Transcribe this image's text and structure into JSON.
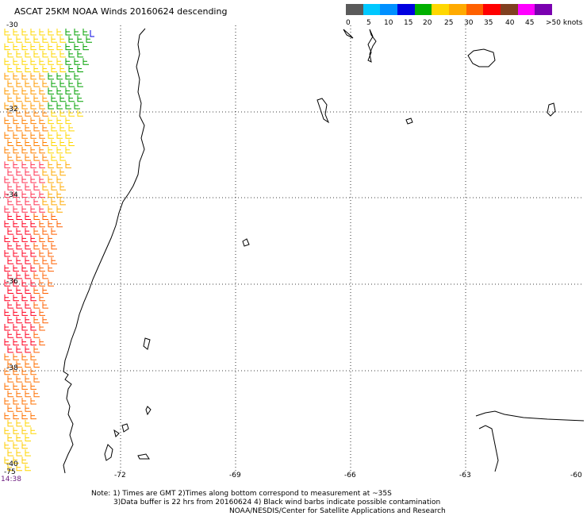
{
  "title": "ASCAT 25KM NOAA Winds 20160624 descending",
  "color_scale": {
    "labels": [
      "0",
      "5",
      "10",
      "15",
      "20",
      "25",
      "30",
      "35",
      "40",
      "45",
      ">50 knots"
    ],
    "colors": [
      "#5a5a5a",
      "#00c8ff",
      "#0090ff",
      "#0000e0",
      "#00b000",
      "#ffd700",
      "#ffaa00",
      "#ff6000",
      "#ff0000",
      "#804020",
      "#ff00ff",
      "#7a00b0"
    ]
  },
  "lat_labels": [
    "-30",
    "-32",
    "-34",
    "-36",
    "-38",
    "-40"
  ],
  "lon_labels": [
    "-75",
    "-72",
    "-69",
    "-66",
    "-63",
    "-60"
  ],
  "time_label": "14:38",
  "notes": [
    "Note: 1) Times are GMT 2)Times along bottom correspond to measurement at ~35S",
    "3)Data buffer is 22 hrs from 20160624 4) Black wind barbs indicate possible contamination",
    "NOAA/NESDIS/Center for Satellite Applications and Research"
  ]
}
